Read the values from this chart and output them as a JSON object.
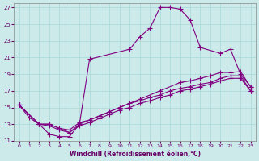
{
  "xlabel": "Windchill (Refroidissement éolien,°C)",
  "bg_color": "#cceaea",
  "line_color": "#800080",
  "xlim": [
    -0.5,
    23.5
  ],
  "ylim": [
    11,
    27.5
  ],
  "xticks": [
    0,
    1,
    2,
    3,
    4,
    5,
    6,
    7,
    8,
    9,
    10,
    11,
    12,
    13,
    14,
    15,
    16,
    17,
    18,
    19,
    20,
    21,
    22,
    23
  ],
  "yticks": [
    11,
    13,
    15,
    17,
    19,
    21,
    23,
    25,
    27
  ],
  "series": [
    {
      "x": [
        0,
        1,
        2,
        3,
        4,
        5,
        6,
        7,
        11,
        12,
        13,
        14,
        15,
        16,
        17,
        18,
        20,
        21,
        22,
        23
      ],
      "y": [
        15.3,
        13.8,
        13.0,
        11.8,
        11.5,
        11.5,
        13.0,
        20.8,
        22.0,
        23.5,
        24.5,
        27.0,
        27.0,
        26.8,
        25.5,
        22.2,
        21.5,
        22.0,
        19.0,
        17.5
      ]
    },
    {
      "x": [
        0,
        2,
        3,
        4,
        5,
        6,
        8,
        10,
        12,
        14,
        16,
        17,
        18,
        19,
        20,
        21,
        22,
        23
      ],
      "y": [
        15.3,
        13.0,
        13.0,
        12.5,
        12.0,
        13.0,
        14.0,
        15.0,
        16.0,
        17.0,
        18.0,
        18.2,
        18.5,
        18.8,
        19.2,
        19.2,
        19.3,
        17.5
      ]
    },
    {
      "x": [
        0,
        2,
        3,
        4,
        5,
        6,
        7,
        8,
        9,
        10,
        11,
        12,
        13,
        14,
        15,
        16,
        17,
        18,
        19,
        20,
        21,
        22,
        23
      ],
      "y": [
        15.3,
        13.0,
        13.0,
        12.5,
        12.3,
        13.2,
        13.5,
        14.0,
        14.5,
        15.0,
        15.5,
        15.8,
        16.2,
        16.5,
        17.0,
        17.3,
        17.5,
        17.8,
        18.0,
        18.5,
        18.8,
        18.8,
        17.0
      ]
    },
    {
      "x": [
        0,
        2,
        3,
        4,
        5,
        6,
        7,
        8,
        9,
        10,
        11,
        12,
        13,
        14,
        15,
        16,
        17,
        18,
        19,
        20,
        21,
        22,
        23
      ],
      "y": [
        15.3,
        13.0,
        12.8,
        12.3,
        12.0,
        12.8,
        13.2,
        13.7,
        14.2,
        14.7,
        15.0,
        15.5,
        15.8,
        16.2,
        16.5,
        17.0,
        17.2,
        17.5,
        17.8,
        18.2,
        18.5,
        18.5,
        17.0
      ]
    }
  ]
}
